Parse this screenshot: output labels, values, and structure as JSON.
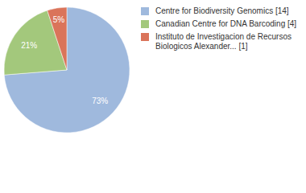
{
  "chart_data": {
    "type": "pie",
    "categories": [
      "Centre for Biodiversity Genomics [14]",
      "Canadian Centre for DNA Barcoding [4]",
      "Instituto de Investigacion de Recursos Biologicos Alexander... [1]"
    ],
    "values": [
      73,
      21,
      5
    ],
    "value_labels": [
      "73%",
      "21%",
      "5%"
    ],
    "colors": [
      "#9fb9dd",
      "#a3c87c",
      "#da745a"
    ],
    "data_labels": true,
    "legend": "right"
  }
}
